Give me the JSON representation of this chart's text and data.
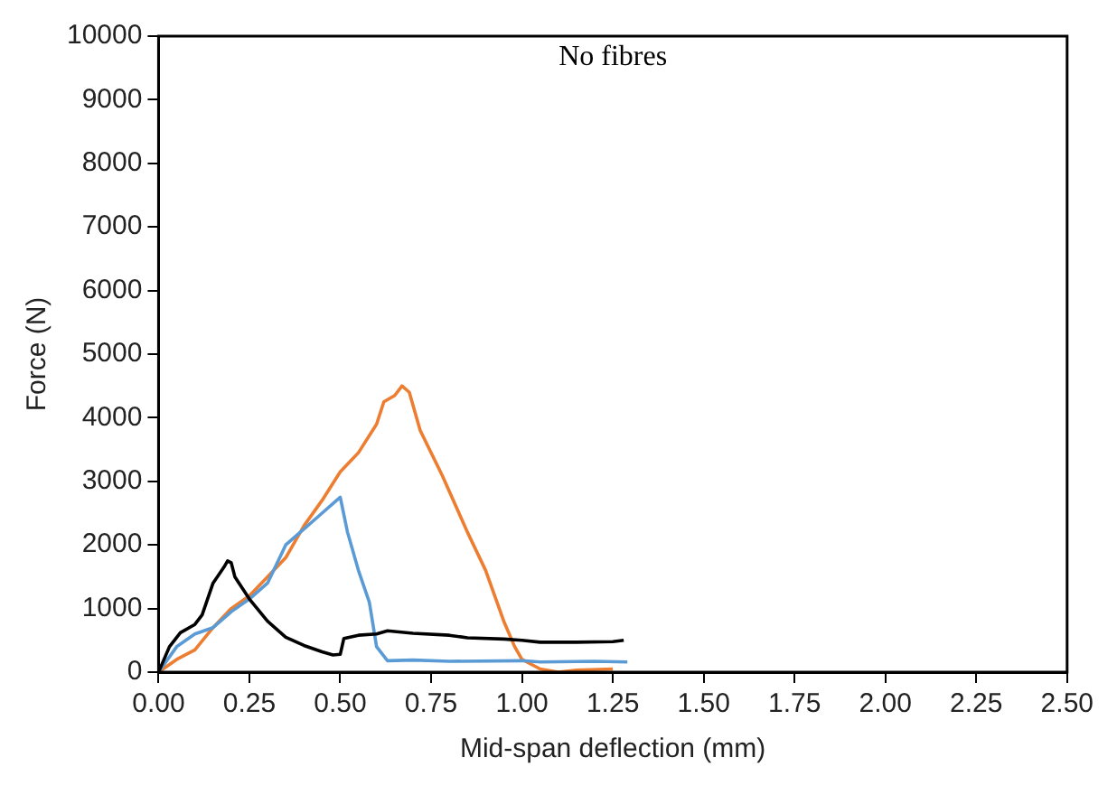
{
  "chart_data": {
    "type": "line",
    "title": "No fibres",
    "xlabel": "Mid-span deflection (mm)",
    "ylabel": "Force (N)",
    "xlim": [
      0,
      2.5
    ],
    "xticks": [
      {
        "value": 0,
        "label": "0.00"
      },
      {
        "value": 0.25,
        "label": "0.25"
      },
      {
        "value": 0.5,
        "label": "0.50"
      },
      {
        "value": 0.75,
        "label": "0.75"
      },
      {
        "value": 1,
        "label": "1.00"
      },
      {
        "value": 1.25,
        "label": "1.25"
      },
      {
        "value": 1.5,
        "label": "1.50"
      },
      {
        "value": 1.75,
        "label": "1.75"
      },
      {
        "value": 2,
        "label": "2.00"
      },
      {
        "value": 2.25,
        "label": "2.25"
      },
      {
        "value": 2.5,
        "label": "2.50"
      }
    ],
    "ylim": [
      0,
      10000
    ],
    "yticks": [
      0,
      1000,
      2000,
      3000,
      4000,
      5000,
      6000,
      7000,
      8000,
      9000,
      10000
    ],
    "grid": false,
    "legend": false,
    "marker": "none",
    "line_style": "solid",
    "series": [
      {
        "color": "#000000",
        "x": [
          0,
          0.03,
          0.06,
          0.1,
          0.12,
          0.15,
          0.18,
          0.19,
          0.2,
          0.21,
          0.25,
          0.3,
          0.35,
          0.4,
          0.45,
          0.48,
          0.5,
          0.51,
          0.55,
          0.6,
          0.63,
          0.7,
          0.8,
          0.85,
          0.95,
          1.0,
          1.05,
          1.15,
          1.25,
          1.28
        ],
        "values": [
          0,
          400,
          620,
          750,
          900,
          1400,
          1650,
          1750,
          1720,
          1500,
          1150,
          800,
          550,
          420,
          320,
          270,
          280,
          530,
          580,
          600,
          650,
          610,
          580,
          540,
          520,
          500,
          470,
          470,
          480,
          500
        ]
      },
      {
        "color": "#5b9bd5",
        "x": [
          0,
          0.05,
          0.1,
          0.15,
          0.2,
          0.25,
          0.3,
          0.35,
          0.4,
          0.45,
          0.48,
          0.5,
          0.52,
          0.55,
          0.58,
          0.6,
          0.63,
          0.7,
          0.8,
          1.0,
          1.05,
          1.2,
          1.29
        ],
        "values": [
          0,
          400,
          600,
          700,
          950,
          1150,
          1400,
          2000,
          2250,
          2500,
          2650,
          2750,
          2200,
          1600,
          1100,
          400,
          180,
          190,
          170,
          180,
          160,
          170,
          160
        ]
      },
      {
        "color": "#ed7d31",
        "x": [
          0,
          0.05,
          0.1,
          0.15,
          0.2,
          0.25,
          0.3,
          0.35,
          0.4,
          0.45,
          0.5,
          0.55,
          0.6,
          0.62,
          0.65,
          0.67,
          0.69,
          0.72,
          0.78,
          0.85,
          0.9,
          0.95,
          0.98,
          1.0,
          1.05,
          1.1,
          1.15,
          1.25
        ],
        "values": [
          0,
          200,
          350,
          700,
          1000,
          1200,
          1500,
          1800,
          2300,
          2700,
          3150,
          3450,
          3900,
          4250,
          4350,
          4500,
          4400,
          3800,
          3100,
          2200,
          1600,
          800,
          400,
          200,
          50,
          0,
          30,
          50
        ]
      }
    ]
  }
}
